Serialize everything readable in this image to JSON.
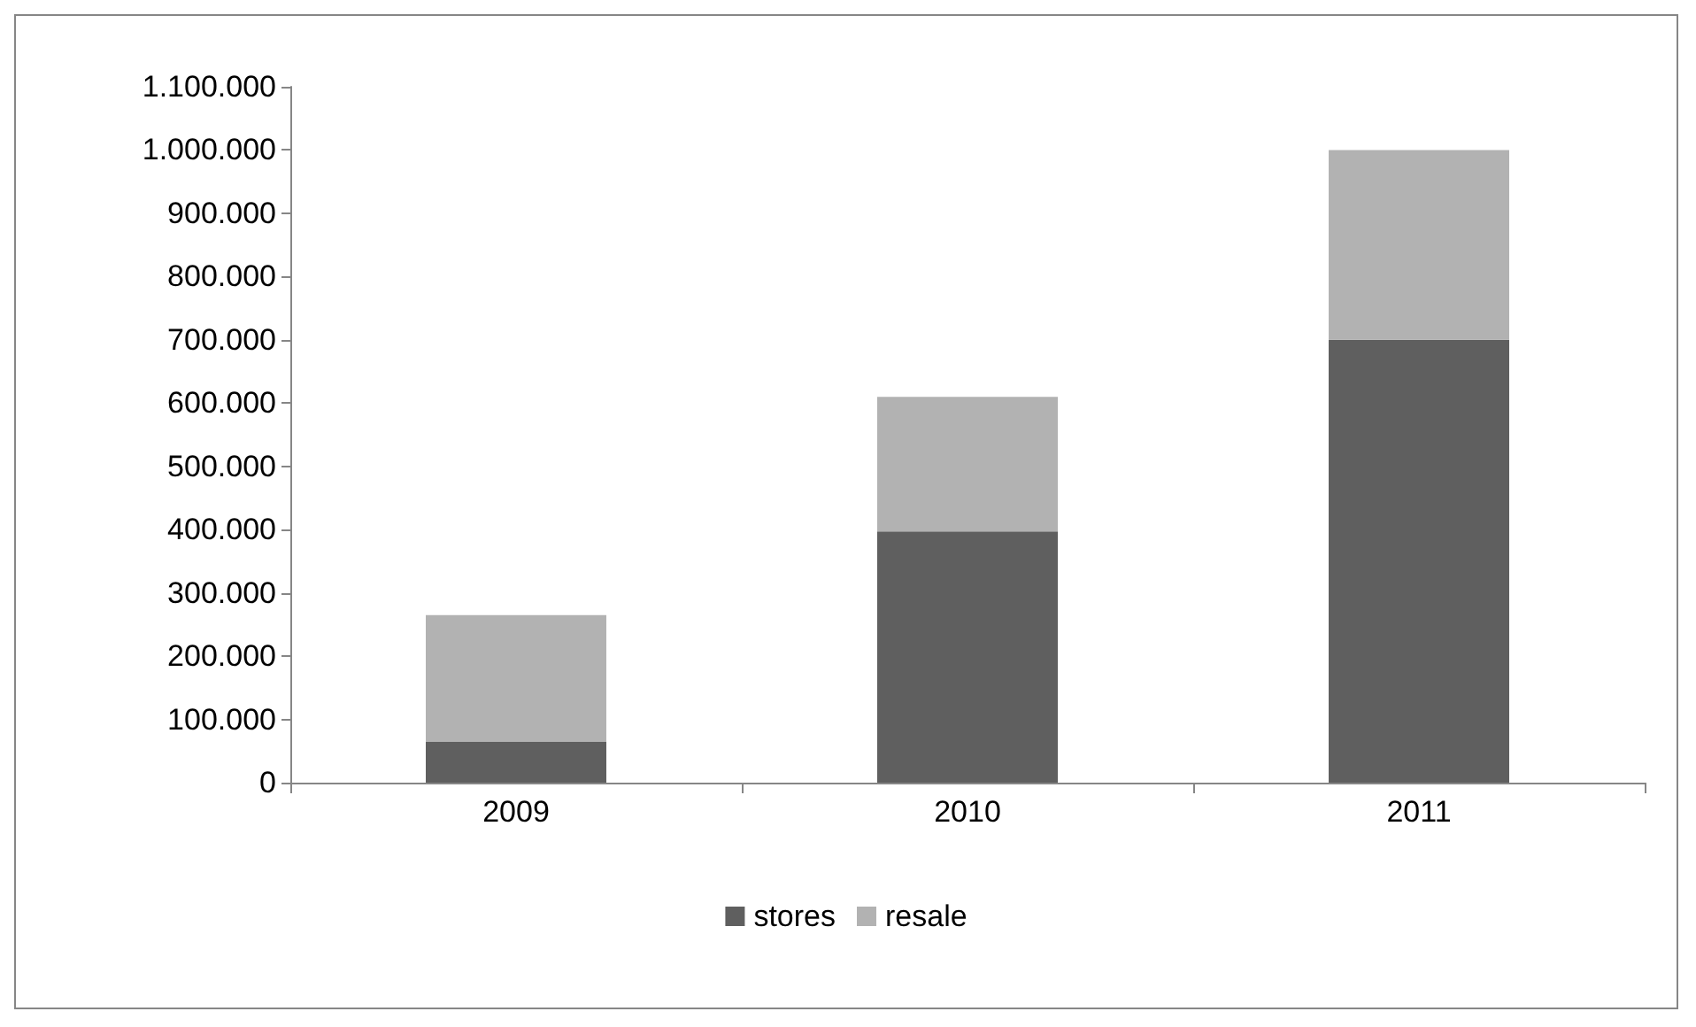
{
  "chart_data": {
    "type": "bar",
    "stacked": true,
    "categories": [
      "2009",
      "2010",
      "2011"
    ],
    "series": [
      {
        "name": "stores",
        "color": "#5f5f5f",
        "values": [
          65000,
          397000,
          700000
        ]
      },
      {
        "name": "resale",
        "color": "#b2b2b2",
        "values": [
          200000,
          213000,
          300000
        ]
      }
    ],
    "ylim": [
      0,
      1100000
    ],
    "yticks": [
      {
        "value": 0,
        "label": "0"
      },
      {
        "value": 100000,
        "label": "100.000"
      },
      {
        "value": 200000,
        "label": "200.000"
      },
      {
        "value": 300000,
        "label": "300.000"
      },
      {
        "value": 400000,
        "label": "400.000"
      },
      {
        "value": 500000,
        "label": "500.000"
      },
      {
        "value": 600000,
        "label": "600.000"
      },
      {
        "value": 700000,
        "label": "700.000"
      },
      {
        "value": 800000,
        "label": "800.000"
      },
      {
        "value": 900000,
        "label": "900.000"
      },
      {
        "value": 1000000,
        "label": "1.000.000"
      },
      {
        "value": 1100000,
        "label": "1.100.000"
      }
    ],
    "grid": false,
    "legend": "bottom"
  }
}
